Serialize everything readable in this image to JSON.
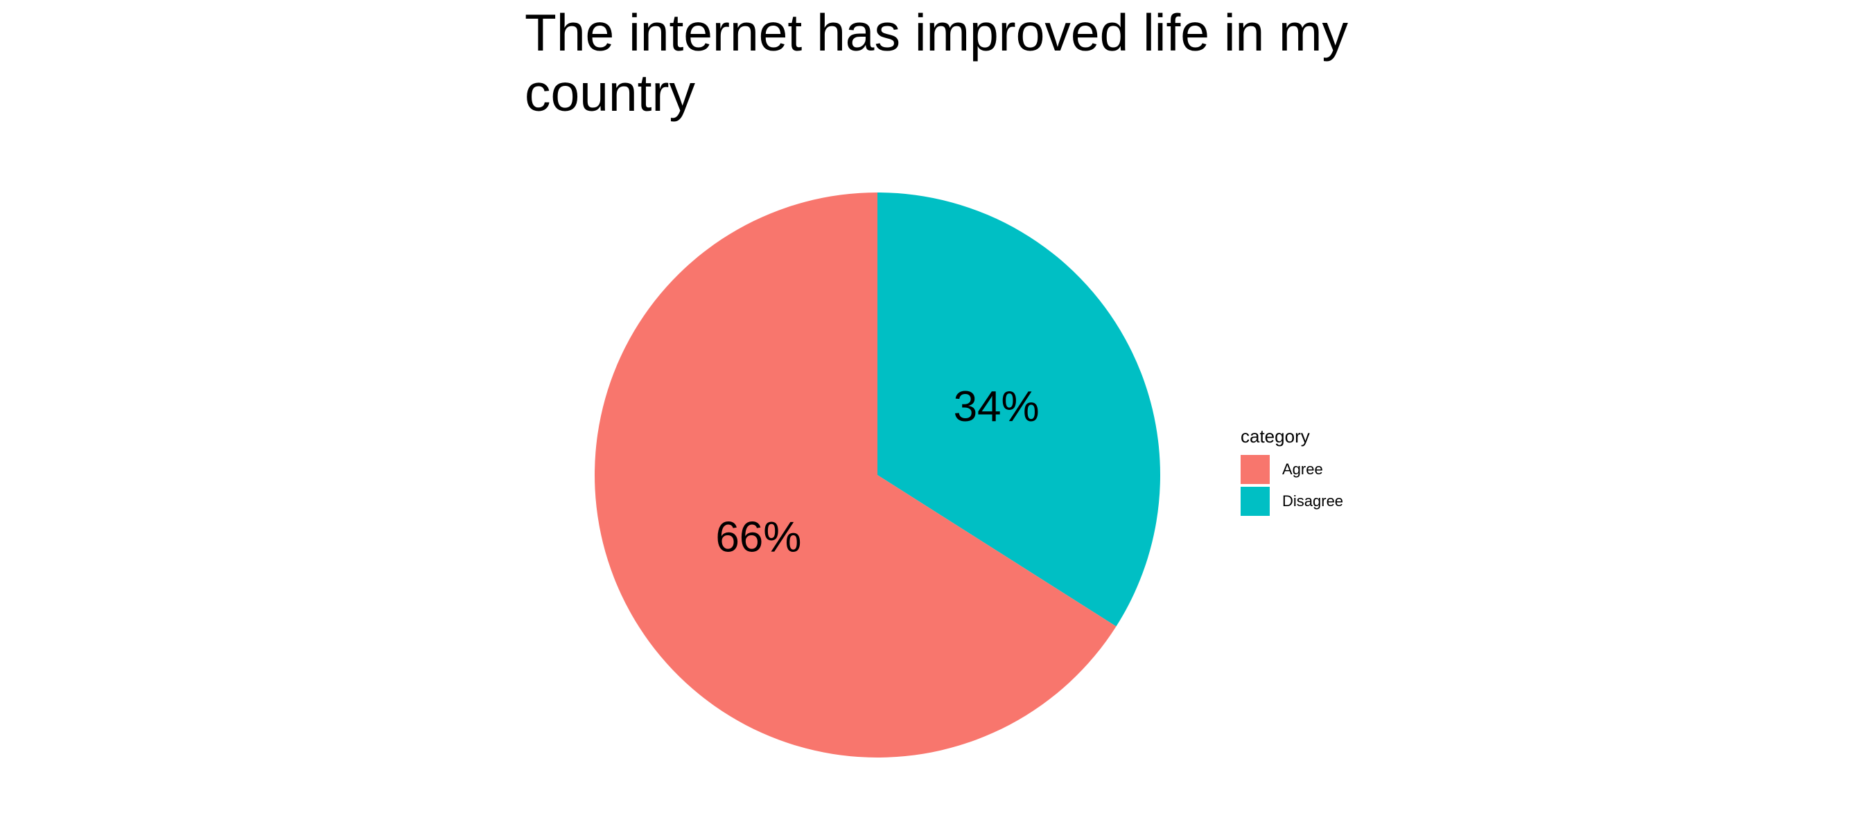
{
  "chart_data": {
    "type": "pie",
    "title": "The internet has improved life in my country",
    "categories": [
      "Agree",
      "Disagree"
    ],
    "values": [
      66,
      34
    ],
    "labels": [
      "66%",
      "34%"
    ],
    "colors": [
      "#F8766D",
      "#00BFC4"
    ],
    "legend": {
      "title": "category",
      "position": "right"
    }
  }
}
